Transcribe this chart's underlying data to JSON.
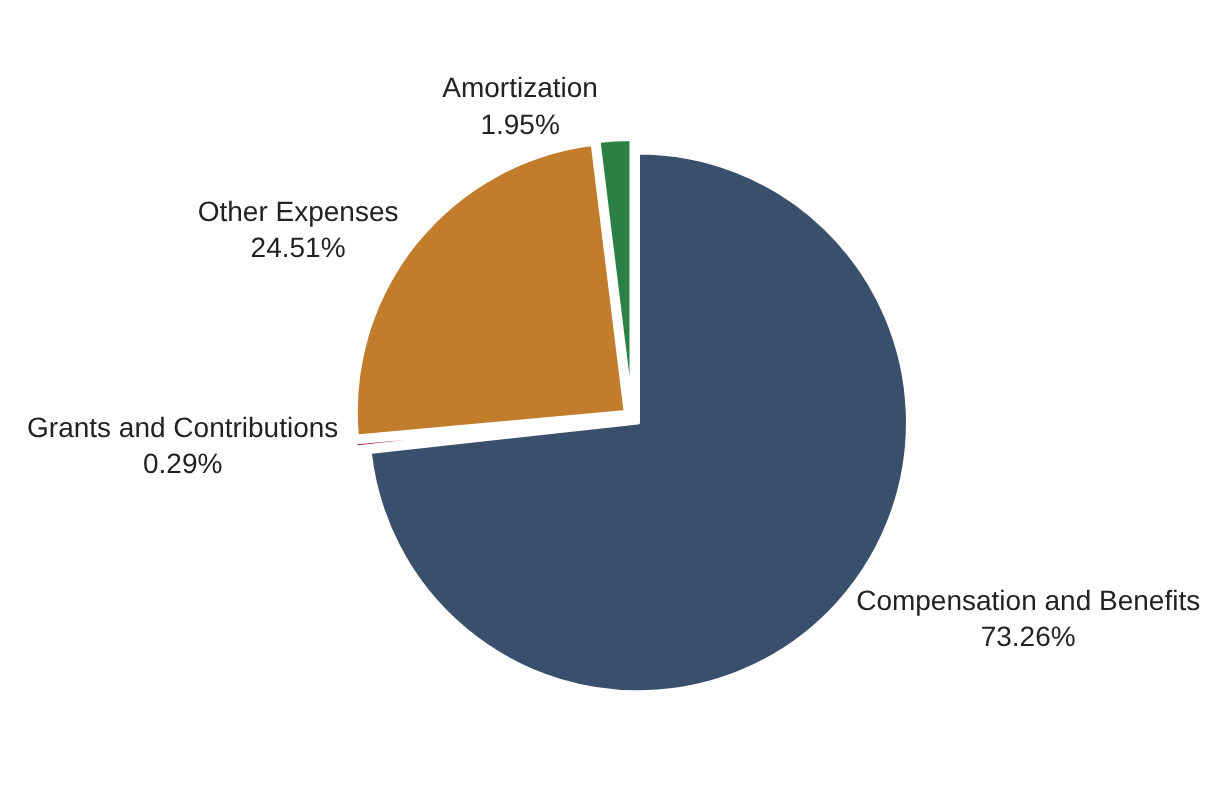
{
  "chart_data": {
    "type": "pie",
    "categories": [
      "Compensation and Benefits",
      "Grants and Contributions",
      "Other Expenses",
      "Amortization"
    ],
    "values": [
      73.26,
      0.29,
      24.51,
      1.95
    ],
    "value_labels": [
      "73.26%",
      "0.29%",
      "24.51%",
      "1.95%"
    ],
    "colors": [
      "#3a4f6b",
      "#a01c30",
      "#c17d2c",
      "#2b8045"
    ],
    "legend": false
  }
}
